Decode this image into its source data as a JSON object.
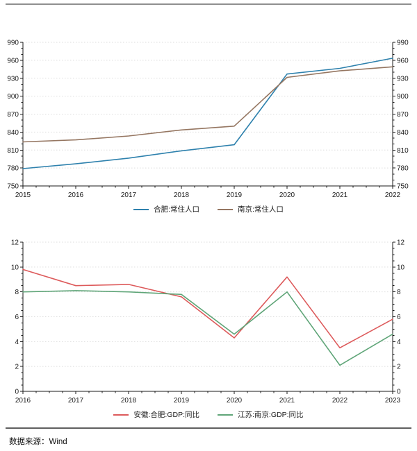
{
  "footer": {
    "source_note": "数据来源：Wind"
  },
  "chart_data": [
    {
      "type": "line",
      "categories": [
        "2015",
        "2016",
        "2017",
        "2018",
        "2019",
        "2020",
        "2021",
        "2022"
      ],
      "series": [
        {
          "name": "合肥:常住人口",
          "color": "#2e81ad",
          "values": [
            779.0,
            787.0,
            796.5,
            808.7,
            818.9,
            937.0,
            946.5,
            963.4
          ]
        },
        {
          "name": "南京:常住人口",
          "color": "#957661",
          "values": [
            823.6,
            827.0,
            833.5,
            843.6,
            850.0,
            931.5,
            942.3,
            949.1
          ]
        }
      ],
      "ylim": [
        750,
        990
      ],
      "yticks": [
        750,
        780,
        810,
        840,
        870,
        900,
        930,
        960,
        990
      ],
      "ytick_step": 30,
      "y_minor_step": 10,
      "x_minor_per_gap": 3,
      "grid": "horizontal-dotted",
      "legend_position": "bottom",
      "dual_y_axis": true
    },
    {
      "type": "line",
      "categories": [
        "2016",
        "2017",
        "2018",
        "2019",
        "2020",
        "2021",
        "2022",
        "2023"
      ],
      "series": [
        {
          "name": "安徽:合肥:GDP:同比",
          "color": "#dd5a5b",
          "values": [
            9.8,
            8.5,
            8.6,
            7.6,
            4.3,
            9.2,
            3.5,
            5.8
          ]
        },
        {
          "name": "江苏:南京:GDP:同比",
          "color": "#5fa578",
          "values": [
            8.0,
            8.1,
            8.0,
            7.8,
            4.6,
            8.0,
            2.1,
            4.6
          ]
        }
      ],
      "ylim": [
        0,
        12
      ],
      "yticks": [
        0,
        2,
        4,
        6,
        8,
        10,
        12
      ],
      "ytick_step": 2,
      "y_minor_step": 0.5,
      "x_minor_per_gap": 3,
      "grid": "horizontal-dotted",
      "legend_position": "bottom",
      "dual_y_axis": true
    }
  ]
}
